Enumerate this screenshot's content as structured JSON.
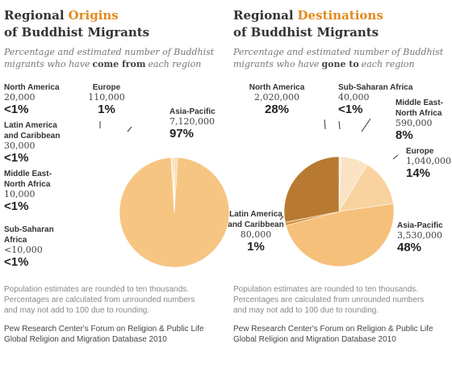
{
  "chart_data": [
    {
      "type": "pie",
      "title": [
        "Regional",
        "Origins",
        "of Buddhist Migrants"
      ],
      "subtitle": [
        "Percentage and estimated number of Buddhist",
        "migrants who have",
        "come from",
        "each region"
      ],
      "categories": [
        [
          "Europe"
        ],
        [
          "Asia-Pacific"
        ],
        [
          "Sub-Saharan",
          "Africa"
        ],
        [
          "Middle East-",
          "North Africa"
        ],
        [
          "Latin America",
          "and Caribbean"
        ],
        [
          "North America"
        ]
      ],
      "estimates": [
        "110,000",
        "7,120,000",
        "<10,000",
        "10,000",
        "30,000",
        "20,000"
      ],
      "values": [
        1,
        97,
        0.1,
        0.14,
        0.41,
        0.27
      ],
      "value_labels": [
        "1%",
        "97%",
        "<1%",
        "<1%",
        "<1%",
        "<1%"
      ],
      "colors": [
        "#f9dcb0",
        "#f6c582",
        "#f6c582",
        "#f6c582",
        "#f6c582",
        "#f6c582"
      ],
      "note": [
        "Population estimates are rounded to ten thousands.",
        "Percentages are calculated from unrounded numbers",
        "and may not add to 100 due to rounding."
      ],
      "source": [
        "Pew Research Center's Forum on Religion & Public Life",
        "Global Religion and Migration Database 2010"
      ]
    },
    {
      "type": "pie",
      "title": [
        "Regional",
        "Destinations",
        "of Buddhist Migrants"
      ],
      "subtitle": [
        "Percentage and estimated number of Buddhist",
        "migrants who have",
        "gone to",
        "each region"
      ],
      "categories": [
        [
          "Sub-Saharan Africa"
        ],
        [
          "Middle East-",
          "North Africa"
        ],
        [
          "Europe"
        ],
        [
          "Asia-Pacific"
        ],
        [
          "Latin America",
          "and Caribbean"
        ],
        [
          "North America"
        ]
      ],
      "estimates": [
        "40,000",
        "590,000",
        "1,040,000",
        "3,530,000",
        "80,000",
        "2,020,000"
      ],
      "values": [
        0.6,
        8,
        14,
        48,
        1,
        28
      ],
      "value_labels": [
        "<1%",
        "8%",
        "14%",
        "48%",
        "1%",
        "28%"
      ],
      "colors": [
        "#fcebd6",
        "#fbe2c2",
        "#f8d3a0",
        "#f5c07a",
        "#d99545",
        "#b87a30"
      ],
      "note": [
        "Population estimates are rounded to ten thousands.",
        "Percentages are calculated from unrounded numbers",
        "and may not add to 100 due to rounding."
      ],
      "source": [
        "Pew Research Center's Forum on Religion & Public Life",
        "Global Religion and Migration Database 2010"
      ]
    }
  ]
}
